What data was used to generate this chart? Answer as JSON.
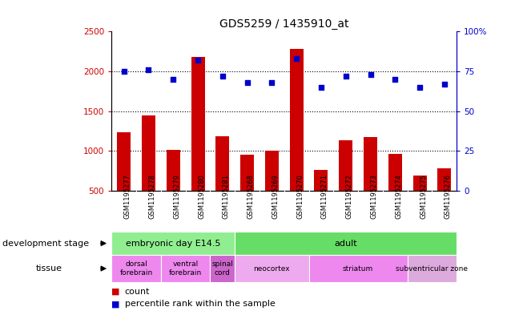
{
  "title": "GDS5259 / 1435910_at",
  "samples": [
    "GSM1195277",
    "GSM1195278",
    "GSM1195279",
    "GSM1195280",
    "GSM1195281",
    "GSM1195268",
    "GSM1195269",
    "GSM1195270",
    "GSM1195271",
    "GSM1195272",
    "GSM1195273",
    "GSM1195274",
    "GSM1195275",
    "GSM1195276"
  ],
  "counts": [
    1230,
    1440,
    1010,
    2180,
    1180,
    950,
    1000,
    2280,
    760,
    1130,
    1170,
    960,
    690,
    780
  ],
  "percentiles": [
    75,
    76,
    70,
    82,
    72,
    68,
    68,
    83,
    65,
    72,
    73,
    70,
    65,
    67
  ],
  "ylim_left": [
    500,
    2500
  ],
  "ylim_right": [
    0,
    100
  ],
  "yticks_left": [
    500,
    1000,
    1500,
    2000,
    2500
  ],
  "yticks_right": [
    0,
    25,
    50,
    75,
    100
  ],
  "bar_color": "#cc0000",
  "dot_color": "#0000cc",
  "bar_bottom": 500,
  "development_stages": [
    {
      "label": "embryonic day E14.5",
      "start": 0,
      "end": 5,
      "color": "#90ee90"
    },
    {
      "label": "adult",
      "start": 5,
      "end": 14,
      "color": "#66dd66"
    }
  ],
  "tissues": [
    {
      "label": "dorsal\nforebrain",
      "start": 0,
      "end": 2,
      "color": "#ee88ee"
    },
    {
      "label": "ventral\nforebrain",
      "start": 2,
      "end": 4,
      "color": "#ee88ee"
    },
    {
      "label": "spinal\ncord",
      "start": 4,
      "end": 5,
      "color": "#cc66cc"
    },
    {
      "label": "neocortex",
      "start": 5,
      "end": 8,
      "color": "#eeaaee"
    },
    {
      "label": "striatum",
      "start": 8,
      "end": 12,
      "color": "#ee88ee"
    },
    {
      "label": "subventricular zone",
      "start": 12,
      "end": 14,
      "color": "#ddaadd"
    }
  ],
  "xtick_bg": "#d0d0d0",
  "fig_bg": "#ffffff",
  "plot_bg": "#ffffff"
}
